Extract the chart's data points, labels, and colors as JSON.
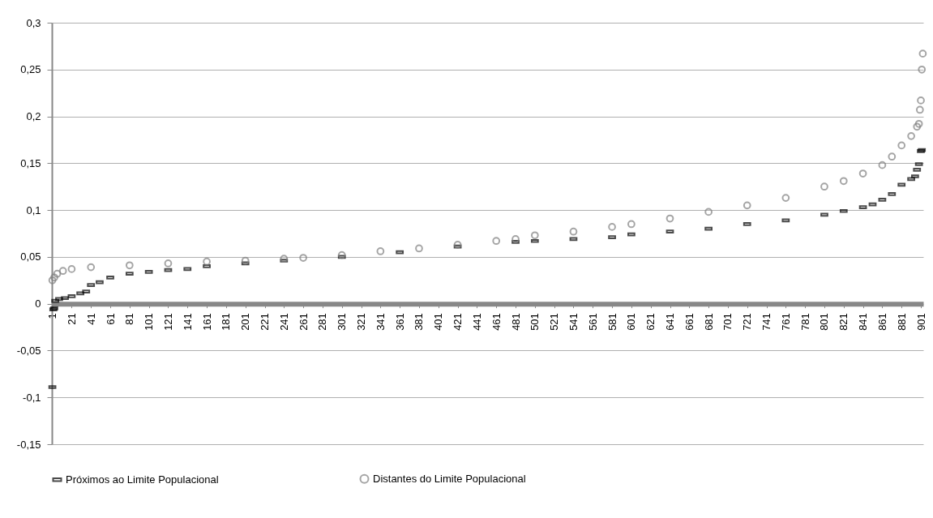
{
  "chart_data": {
    "type": "scatter",
    "xlim": [
      0.5,
      903.5
    ],
    "xticks": [
      1,
      21,
      41,
      61,
      81,
      101,
      121,
      141,
      161,
      181,
      201,
      221,
      241,
      261,
      281,
      301,
      321,
      341,
      361,
      381,
      401,
      421,
      441,
      461,
      481,
      501,
      521,
      541,
      561,
      581,
      601,
      621,
      641,
      661,
      681,
      701,
      721,
      741,
      761,
      781,
      801,
      821,
      841,
      861,
      881,
      901
    ],
    "ylim": [
      -0.15,
      0.3
    ],
    "yticks": [
      {
        "value": -0.15,
        "label": "-0,15"
      },
      {
        "value": -0.1,
        "label": "-0,1"
      },
      {
        "value": -0.05,
        "label": "-0,05"
      },
      {
        "value": 0,
        "label": "0"
      },
      {
        "value": 0.05,
        "label": "0,05"
      },
      {
        "value": 0.1,
        "label": "0,1"
      },
      {
        "value": 0.15,
        "label": "0,15"
      },
      {
        "value": 0.2,
        "label": "0,2"
      },
      {
        "value": 0.25,
        "label": "0,25"
      },
      {
        "value": 0.3,
        "label": "0,3"
      }
    ],
    "grid": "y",
    "legend": "bottom",
    "series": [
      {
        "name": "Próximos ao Limite Populacional",
        "color": "#000000",
        "marker": "square",
        "x": [
          1,
          2,
          3,
          4,
          8,
          14,
          21,
          30,
          36,
          41,
          50,
          61,
          81,
          101,
          121,
          141,
          161,
          201,
          241,
          301,
          361,
          421,
          481,
          501,
          541,
          581,
          601,
          641,
          681,
          721,
          761,
          801,
          821,
          841,
          851,
          861,
          871,
          881,
          891,
          895,
          897,
          899,
          901,
          902
        ],
        "values": [
          -0.089,
          -0.006,
          -0.005,
          0.003,
          0.005,
          0.006,
          0.008,
          0.011,
          0.013,
          0.02,
          0.023,
          0.028,
          0.032,
          0.034,
          0.036,
          0.037,
          0.04,
          0.043,
          0.046,
          0.05,
          0.055,
          0.061,
          0.066,
          0.067,
          0.069,
          0.071,
          0.074,
          0.077,
          0.08,
          0.085,
          0.089,
          0.095,
          0.099,
          0.103,
          0.106,
          0.111,
          0.117,
          0.127,
          0.133,
          0.136,
          0.143,
          0.149,
          0.163,
          0.164
        ]
      },
      {
        "name": "Distantes do Limite Populacional",
        "color": "#808080",
        "marker": "circle",
        "x": [
          1,
          3,
          6,
          12,
          21,
          41,
          81,
          121,
          161,
          201,
          241,
          261,
          301,
          341,
          381,
          421,
          461,
          481,
          501,
          541,
          581,
          601,
          641,
          681,
          721,
          761,
          801,
          821,
          841,
          861,
          871,
          881,
          891,
          897,
          899,
          900,
          901,
          902,
          903
        ],
        "values": [
          0.025,
          0.028,
          0.032,
          0.035,
          0.037,
          0.039,
          0.041,
          0.043,
          0.045,
          0.046,
          0.048,
          0.049,
          0.052,
          0.056,
          0.059,
          0.063,
          0.067,
          0.069,
          0.073,
          0.077,
          0.082,
          0.085,
          0.091,
          0.098,
          0.105,
          0.113,
          0.125,
          0.131,
          0.139,
          0.148,
          0.157,
          0.169,
          0.179,
          0.189,
          0.192,
          0.207,
          0.217,
          0.25,
          0.267
        ]
      }
    ]
  }
}
